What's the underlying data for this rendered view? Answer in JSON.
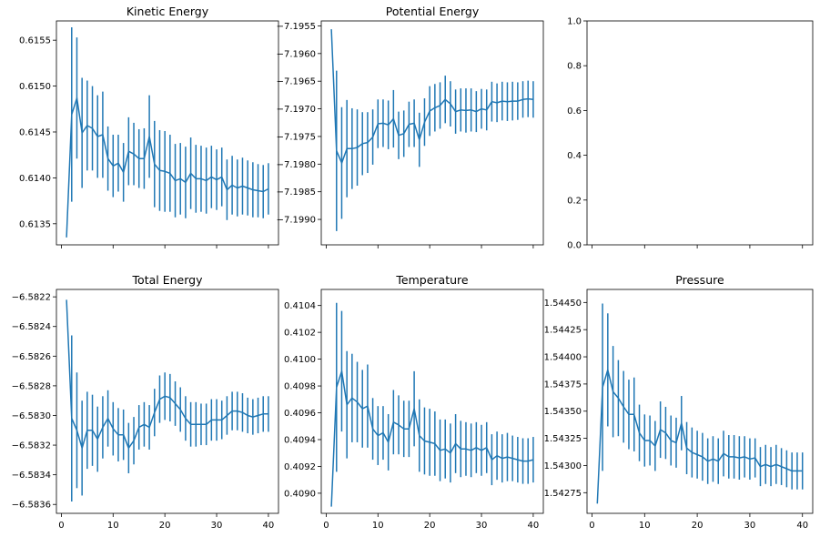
{
  "chart_data": [
    {
      "type": "line",
      "error_bars": true,
      "title": "Kinetic Energy",
      "xlabel": "",
      "ylabel": "",
      "xlim": [
        -0.95,
        41.95
      ],
      "ylim": [
        0.61327,
        0.61571
      ],
      "xticks": [
        0,
        10,
        20,
        30,
        40
      ],
      "show_xticklabels": false,
      "yticks": [
        0.6135,
        0.614,
        0.6145,
        0.615,
        0.6155
      ],
      "ytick_labels": [
        "0.6135",
        "0.6140",
        "0.6145",
        "0.6150",
        "0.6155"
      ],
      "x": [
        1,
        2,
        3,
        4,
        5,
        6,
        7,
        8,
        9,
        10,
        11,
        12,
        13,
        14,
        15,
        16,
        17,
        18,
        19,
        20,
        21,
        22,
        23,
        24,
        25,
        26,
        27,
        28,
        29,
        30,
        31,
        32,
        33,
        34,
        35,
        36,
        37,
        38,
        39,
        40
      ],
      "y": [
        0.61335,
        0.61469,
        0.61487,
        0.61449,
        0.61457,
        0.61454,
        0.61445,
        0.61447,
        0.61421,
        0.61413,
        0.61416,
        0.61406,
        0.61429,
        0.61426,
        0.61421,
        0.61421,
        0.61445,
        0.61415,
        0.61408,
        0.61407,
        0.61405,
        0.61397,
        0.61399,
        0.61395,
        0.61405,
        0.61399,
        0.61399,
        0.61397,
        0.61401,
        0.61398,
        0.61401,
        0.61387,
        0.61392,
        0.61389,
        0.61391,
        0.61389,
        0.61387,
        0.61386,
        0.61385,
        0.61388
      ],
      "yerr": [
        0,
        0.00095,
        0.00066,
        0.0006,
        0.00049,
        0.00046,
        0.00045,
        0.00047,
        0.00035,
        0.00034,
        0.00031,
        0.00032,
        0.00037,
        0.00034,
        0.00032,
        0.00033,
        0.00045,
        0.00047,
        0.00044,
        0.00044,
        0.00042,
        0.0004,
        0.00039,
        0.00039,
        0.00039,
        0.00037,
        0.00036,
        0.00036,
        0.00034,
        0.00033,
        0.00032,
        0.00033,
        0.00032,
        0.00031,
        0.00031,
        0.0003,
        0.0003,
        0.00029,
        0.00029,
        0.00028
      ]
    },
    {
      "type": "line",
      "error_bars": true,
      "title": "Potential Energy",
      "xlabel": "",
      "ylabel": "",
      "xlim": [
        -0.95,
        41.95
      ],
      "ylim": [
        -7.19946,
        -7.19541
      ],
      "xticks": [
        0,
        10,
        20,
        30,
        40
      ],
      "show_xticklabels": false,
      "yticks": [
        -7.199,
        -7.1985,
        -7.198,
        -7.1975,
        -7.197,
        -7.1965,
        -7.196,
        -7.1955
      ],
      "ytick_labels": [
        "−7.1990",
        "−7.1985",
        "−7.1980",
        "−7.1975",
        "−7.1970",
        "−7.1965",
        "−7.1960",
        "−7.1955"
      ],
      "x": [
        1,
        2,
        3,
        4,
        5,
        6,
        7,
        8,
        9,
        10,
        11,
        12,
        13,
        14,
        15,
        16,
        17,
        18,
        19,
        20,
        21,
        22,
        23,
        24,
        25,
        26,
        27,
        28,
        29,
        30,
        31,
        32,
        33,
        34,
        35,
        36,
        37,
        38,
        39,
        40
      ],
      "y": [
        -7.19556,
        -7.19776,
        -7.19798,
        -7.19772,
        -7.19772,
        -7.1977,
        -7.19763,
        -7.19761,
        -7.19751,
        -7.19727,
        -7.19726,
        -7.19729,
        -7.19718,
        -7.19748,
        -7.19745,
        -7.19728,
        -7.19726,
        -7.19756,
        -7.19724,
        -7.19704,
        -7.19698,
        -7.19694,
        -7.19683,
        -7.19691,
        -7.19705,
        -7.19702,
        -7.19703,
        -7.19702,
        -7.19705,
        -7.197,
        -7.19702,
        -7.19687,
        -7.19689,
        -7.19686,
        -7.19687,
        -7.19686,
        -7.19686,
        -7.19683,
        -7.19682,
        -7.19683
      ],
      "yerr": [
        0,
        0.00145,
        0.00101,
        0.00088,
        0.00073,
        0.00069,
        0.00057,
        0.00055,
        0.0005,
        0.00044,
        0.00043,
        0.00044,
        0.00052,
        0.00043,
        0.00042,
        0.00041,
        0.00043,
        0.00049,
        0.00043,
        0.00045,
        0.00043,
        0.00042,
        0.00043,
        0.00041,
        0.0004,
        0.00039,
        0.0004,
        0.00039,
        0.00037,
        0.00036,
        0.00037,
        0.00036,
        0.00035,
        0.00035,
        0.00035,
        0.00035,
        0.00034,
        0.00033,
        0.00033,
        0.00033
      ]
    },
    {
      "type": "line",
      "empty": true,
      "title": "",
      "xlabel": "",
      "ylabel": "",
      "xlim": [
        -0.95,
        41.95
      ],
      "ylim": [
        0,
        1
      ],
      "xticks": [
        0,
        10,
        20,
        30,
        40
      ],
      "show_xticklabels": false,
      "yticks": [
        0,
        0.2,
        0.4,
        0.6,
        0.8,
        1.0
      ],
      "ytick_labels": [
        "0.0",
        "0.2",
        "0.4",
        "0.6",
        "0.8",
        "1.0"
      ]
    },
    {
      "type": "line",
      "error_bars": true,
      "title": "Total Energy",
      "xlabel": "",
      "ylabel": "",
      "xlim": [
        -0.95,
        41.95
      ],
      "ylim": [
        -6.58366,
        -6.58215
      ],
      "xticks": [
        0,
        10,
        20,
        30,
        40
      ],
      "xtick_labels": [
        "0",
        "10",
        "20",
        "30",
        "40"
      ],
      "show_xticklabels": true,
      "yticks": [
        -6.5836,
        -6.5834,
        -6.5832,
        -6.583,
        -6.5828,
        -6.5826,
        -6.5824,
        -6.5822
      ],
      "ytick_labels": [
        "−6.5836",
        "−6.5834",
        "−6.5832",
        "−6.5830",
        "−6.5828",
        "−6.5826",
        "−6.5824",
        "−6.5822"
      ],
      "x": [
        1,
        2,
        3,
        4,
        5,
        6,
        7,
        8,
        9,
        10,
        11,
        12,
        13,
        14,
        15,
        16,
        17,
        18,
        19,
        20,
        21,
        22,
        23,
        24,
        25,
        26,
        27,
        28,
        29,
        30,
        31,
        32,
        33,
        34,
        35,
        36,
        37,
        38,
        39,
        40
      ],
      "y": [
        -6.58222,
        -6.58302,
        -6.5831,
        -6.58322,
        -6.5831,
        -6.5831,
        -6.58316,
        -6.58308,
        -6.58302,
        -6.58309,
        -6.58313,
        -6.58313,
        -6.58322,
        -6.58317,
        -6.58308,
        -6.58306,
        -6.58308,
        -6.58298,
        -6.58289,
        -6.58287,
        -6.58288,
        -6.58292,
        -6.58296,
        -6.58302,
        -6.58306,
        -6.58306,
        -6.58306,
        -6.58306,
        -6.58303,
        -6.58303,
        -6.58303,
        -6.583,
        -6.58297,
        -6.58297,
        -6.58298,
        -6.583,
        -6.58301,
        -6.583,
        -6.58299,
        -6.58299
      ],
      "yerr": [
        0,
        0.00056,
        0.00039,
        0.00032,
        0.00026,
        0.00024,
        0.00022,
        0.00021,
        0.00019,
        0.00018,
        0.00018,
        0.00017,
        0.00017,
        0.00016,
        0.00015,
        0.00015,
        0.00015,
        0.00016,
        0.00016,
        0.00016,
        0.00016,
        0.00015,
        0.00015,
        0.00015,
        0.00015,
        0.00015,
        0.00014,
        0.00014,
        0.00014,
        0.00014,
        0.00013,
        0.00013,
        0.00013,
        0.00013,
        0.00013,
        0.00012,
        0.00012,
        0.00012,
        0.00012,
        0.00012
      ]
    },
    {
      "type": "line",
      "error_bars": true,
      "title": "Temperature",
      "xlabel": "",
      "ylabel": "",
      "xlim": [
        -0.95,
        41.95
      ],
      "ylim": [
        0.40885,
        0.41052
      ],
      "xticks": [
        0,
        10,
        20,
        30,
        40
      ],
      "xtick_labels": [
        "0",
        "10",
        "20",
        "30",
        "40"
      ],
      "show_xticklabels": true,
      "yticks": [
        0.409,
        0.4092,
        0.4094,
        0.4096,
        0.4098,
        0.41,
        0.4102,
        0.4104
      ],
      "ytick_labels": [
        "0.4090",
        "0.4092",
        "0.4094",
        "0.4096",
        "0.4098",
        "0.4100",
        "0.4102",
        "0.4104"
      ],
      "x": [
        1,
        2,
        3,
        4,
        5,
        6,
        7,
        8,
        9,
        10,
        11,
        12,
        13,
        14,
        15,
        16,
        17,
        18,
        19,
        20,
        21,
        22,
        23,
        24,
        25,
        26,
        27,
        28,
        29,
        30,
        31,
        32,
        33,
        34,
        35,
        36,
        37,
        38,
        39,
        40
      ],
      "y": [
        0.4089,
        0.40979,
        0.40991,
        0.40966,
        0.40971,
        0.40968,
        0.40963,
        0.40965,
        0.40948,
        0.40943,
        0.40945,
        0.40938,
        0.40953,
        0.40951,
        0.40948,
        0.40948,
        0.40963,
        0.40943,
        0.40939,
        0.40938,
        0.40937,
        0.40932,
        0.40933,
        0.4093,
        0.40937,
        0.40933,
        0.40933,
        0.40932,
        0.40934,
        0.40932,
        0.40934,
        0.40925,
        0.40928,
        0.40926,
        0.40927,
        0.40926,
        0.40925,
        0.40924,
        0.40924,
        0.40925
      ],
      "yerr": [
        0,
        0.00063,
        0.00045,
        0.0004,
        0.00033,
        0.0003,
        0.00029,
        0.00031,
        0.00023,
        0.00022,
        0.0002,
        0.00021,
        0.00024,
        0.00022,
        0.00021,
        0.00021,
        0.00028,
        0.00027,
        0.00025,
        0.00025,
        0.00024,
        0.00023,
        0.00022,
        0.00022,
        0.00022,
        0.00021,
        0.0002,
        0.0002,
        0.00019,
        0.00019,
        0.00019,
        0.00019,
        0.00018,
        0.00018,
        0.00018,
        0.00017,
        0.00017,
        0.00017,
        0.00017,
        0.00017
      ]
    },
    {
      "type": "line",
      "error_bars": true,
      "title": "Pressure",
      "xlabel": "",
      "ylabel": "",
      "xlim": [
        -0.95,
        41.95
      ],
      "ylim": [
        1.54256,
        1.54462
      ],
      "xticks": [
        0,
        10,
        20,
        30,
        40
      ],
      "xtick_labels": [
        "0",
        "10",
        "20",
        "30",
        "40"
      ],
      "show_xticklabels": true,
      "yticks": [
        1.54275,
        1.543,
        1.54325,
        1.5435,
        1.54375,
        1.544,
        1.54425,
        1.5445
      ],
      "ytick_labels": [
        "1.54275",
        "1.54300",
        "1.54325",
        "1.54350",
        "1.54375",
        "1.54400",
        "1.54425",
        "1.54450"
      ],
      "x": [
        1,
        2,
        3,
        4,
        5,
        6,
        7,
        8,
        9,
        10,
        11,
        12,
        13,
        14,
        15,
        16,
        17,
        18,
        19,
        20,
        21,
        22,
        23,
        24,
        25,
        26,
        27,
        28,
        29,
        30,
        31,
        32,
        33,
        34,
        35,
        36,
        37,
        38,
        39,
        40
      ],
      "y": [
        1.54265,
        1.54372,
        1.54388,
        1.54368,
        1.54362,
        1.54354,
        1.54347,
        1.54347,
        1.5433,
        1.54323,
        1.54323,
        1.54318,
        1.54333,
        1.5433,
        1.54323,
        1.54321,
        1.54339,
        1.54316,
        1.54312,
        1.5431,
        1.54308,
        1.54304,
        1.54306,
        1.54304,
        1.54311,
        1.54308,
        1.54308,
        1.54307,
        1.54308,
        1.54306,
        1.54307,
        1.54299,
        1.54301,
        1.54299,
        1.54301,
        1.54299,
        1.54297,
        1.54295,
        1.54295,
        1.54295
      ],
      "yerr": [
        0,
        0.00077,
        0.00052,
        0.00042,
        0.00035,
        0.00033,
        0.00032,
        0.00034,
        0.00026,
        0.00024,
        0.00023,
        0.00023,
        0.00026,
        0.00024,
        0.00023,
        0.00023,
        0.00025,
        0.00024,
        0.00023,
        0.00022,
        0.00022,
        0.00021,
        0.00021,
        0.00021,
        0.00021,
        0.0002,
        0.0002,
        0.0002,
        0.00019,
        0.00019,
        0.00018,
        0.00018,
        0.00018,
        0.00018,
        0.00018,
        0.00017,
        0.00017,
        0.00017,
        0.00017,
        0.00017
      ]
    }
  ],
  "colors": {
    "series": "#1f77b4",
    "axis": "#000000",
    "background": "#ffffff"
  }
}
